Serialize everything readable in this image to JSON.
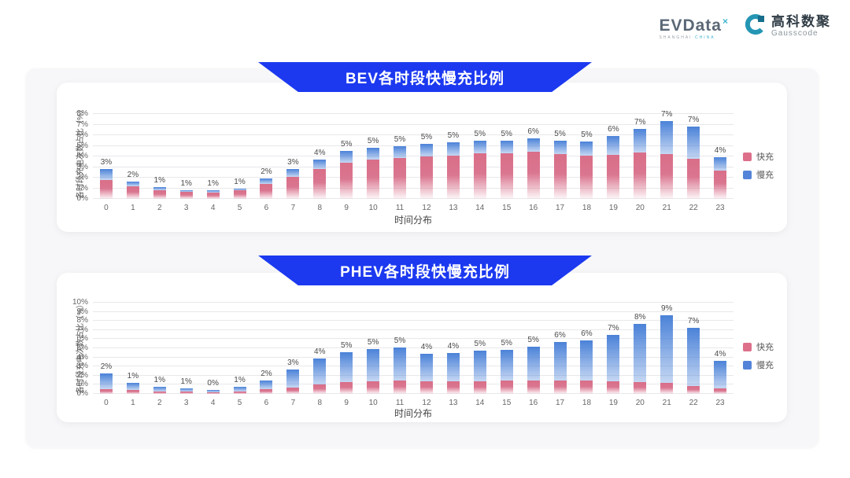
{
  "header": {
    "evdata": {
      "text": "EVData",
      "sup": "×",
      "sub_1": "SHANGHAI",
      "sub_2": "CHINA"
    },
    "gausscode": {
      "cn": "高科数聚",
      "en": "Gausscode"
    }
  },
  "theme": {
    "banner_blue": "#1c39f0",
    "fast_pink": "#dd6f8b",
    "slow_blue": "#5384d9",
    "panel_bg": "#f7f7f9",
    "gridline": "#e8e8ec",
    "logo_teal": "#3fb6cf"
  },
  "chart_data": [
    {
      "type": "bar",
      "stacked": true,
      "title": "BEV各时段快慢充比例",
      "xlabel": "时间分布",
      "ylabel": "各时段充电次数占比（%）",
      "ylim": [
        0,
        8
      ],
      "ytick_step": 1,
      "grid": true,
      "legend_position": "right",
      "categories": [
        "0",
        "1",
        "2",
        "3",
        "4",
        "5",
        "6",
        "7",
        "8",
        "9",
        "10",
        "11",
        "12",
        "13",
        "14",
        "15",
        "16",
        "17",
        "18",
        "19",
        "20",
        "21",
        "22",
        "23"
      ],
      "bar_labels": [
        "3%",
        "2%",
        "1%",
        "1%",
        "1%",
        "1%",
        "2%",
        "3%",
        "4%",
        "5%",
        "5%",
        "5%",
        "5%",
        "5%",
        "5%",
        "5%",
        "6%",
        "5%",
        "5%",
        "6%",
        "7%",
        "7%",
        "7%",
        "4%"
      ],
      "series": [
        {
          "name": "快充",
          "color": "#dd6f8b",
          "values": [
            1.8,
            1.15,
            0.8,
            0.65,
            0.62,
            0.78,
            1.4,
            2.1,
            2.8,
            3.4,
            3.7,
            3.85,
            4.0,
            4.1,
            4.3,
            4.3,
            4.45,
            4.2,
            4.1,
            4.15,
            4.35,
            4.2,
            3.8,
            2.7
          ]
        },
        {
          "name": "慢充",
          "color": "#5384d9",
          "values": [
            1.0,
            0.5,
            0.3,
            0.2,
            0.18,
            0.22,
            0.5,
            0.7,
            0.9,
            1.1,
            1.1,
            1.15,
            1.2,
            1.2,
            1.2,
            1.2,
            1.25,
            1.3,
            1.3,
            1.75,
            2.25,
            3.1,
            3.0,
            1.2
          ]
        }
      ]
    },
    {
      "type": "bar",
      "stacked": true,
      "title": "PHEV各时段快慢充比例",
      "xlabel": "时间分布",
      "ylabel": "各时段充电次数占比（%）",
      "ylim": [
        0,
        10
      ],
      "ytick_step": 1,
      "grid": true,
      "legend_position": "right",
      "categories": [
        "0",
        "1",
        "2",
        "3",
        "4",
        "5",
        "6",
        "7",
        "8",
        "9",
        "10",
        "11",
        "12",
        "13",
        "14",
        "15",
        "16",
        "17",
        "18",
        "19",
        "20",
        "21",
        "22",
        "23"
      ],
      "bar_labels": [
        "2%",
        "1%",
        "1%",
        "1%",
        "0%",
        "1%",
        "2%",
        "3%",
        "4%",
        "5%",
        "5%",
        "5%",
        "4%",
        "4%",
        "5%",
        "5%",
        "5%",
        "6%",
        "6%",
        "7%",
        "8%",
        "9%",
        "7%",
        "4%"
      ],
      "series": [
        {
          "name": "快充",
          "color": "#dd6f8b",
          "values": [
            0.5,
            0.4,
            0.3,
            0.25,
            0.2,
            0.3,
            0.5,
            0.7,
            1.0,
            1.3,
            1.4,
            1.5,
            1.4,
            1.4,
            1.4,
            1.5,
            1.5,
            1.5,
            1.5,
            1.4,
            1.3,
            1.2,
            0.9,
            0.6
          ]
        },
        {
          "name": "慢充",
          "color": "#5384d9",
          "values": [
            1.7,
            0.8,
            0.5,
            0.35,
            0.25,
            0.45,
            1.0,
            2.0,
            2.9,
            3.3,
            3.5,
            3.6,
            3.0,
            3.1,
            3.3,
            3.3,
            3.7,
            4.2,
            4.4,
            5.1,
            6.4,
            7.4,
            6.3,
            3.0
          ]
        }
      ]
    }
  ]
}
